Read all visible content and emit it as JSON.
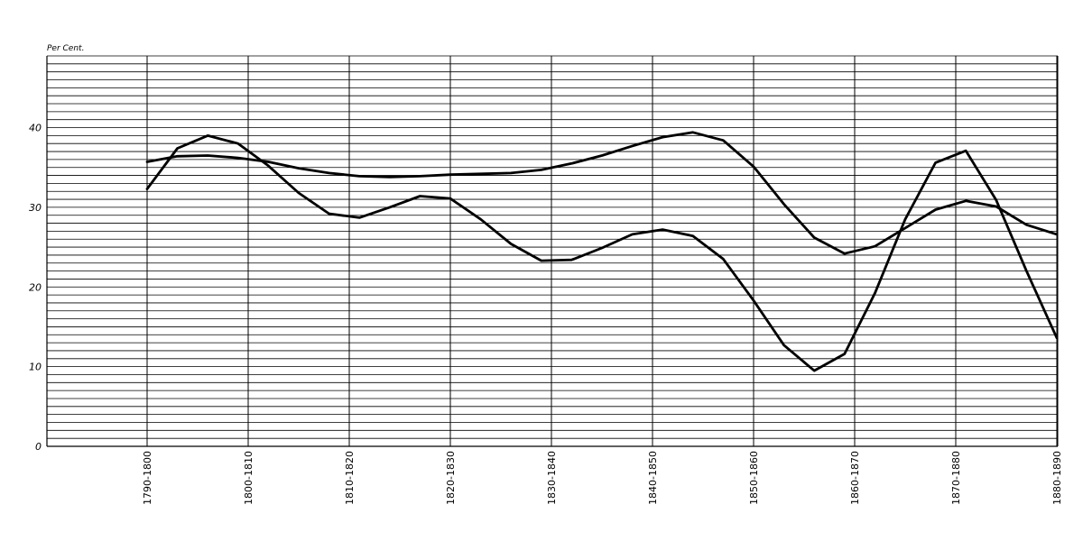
{
  "chart_data": {
    "type": "line",
    "unit_label": "Per Cent.",
    "ylim": [
      0,
      49
    ],
    "y_ticks": [
      0,
      10,
      20,
      30,
      40
    ],
    "grid": true,
    "categories": [
      "1790-1800",
      "1800-1810",
      "1810-1820",
      "1820-1830",
      "1830-1840",
      "1840-1850",
      "1850-1860",
      "1860-1870",
      "1870-1880",
      "1880-1890"
    ],
    "series": [
      {
        "x": [
          1790,
          1793,
          1796,
          1799,
          1802,
          1805,
          1808,
          1811,
          1814,
          1817,
          1820,
          1823,
          1826,
          1829,
          1832,
          1835,
          1838,
          1841,
          1844,
          1847,
          1850,
          1853,
          1856,
          1859,
          1862,
          1865,
          1868,
          1871,
          1874,
          1877,
          1880
        ],
        "values": [
          32.3,
          37.4,
          39.0,
          38.0,
          35.2,
          31.8,
          29.2,
          28.7,
          30.0,
          31.4,
          31.1,
          28.5,
          25.4,
          23.3,
          23.4,
          24.9,
          26.6,
          27.2,
          26.4,
          23.5,
          18.3,
          12.7,
          9.5,
          11.6,
          19.2,
          28.5,
          35.6,
          37.1,
          30.9,
          22.0,
          13.6
        ]
      },
      {
        "x": [
          1790,
          1793,
          1796,
          1799,
          1802,
          1805,
          1808,
          1811,
          1814,
          1817,
          1820,
          1823,
          1826,
          1829,
          1832,
          1835,
          1838,
          1841,
          1844,
          1847,
          1850,
          1853,
          1856,
          1859,
          1862,
          1865,
          1868,
          1871,
          1874,
          1877,
          1880
        ],
        "values": [
          35.7,
          36.4,
          36.5,
          36.2,
          35.7,
          34.9,
          34.3,
          33.9,
          33.8,
          33.9,
          34.1,
          34.2,
          34.3,
          34.7,
          35.5,
          36.5,
          37.7,
          38.8,
          39.4,
          38.4,
          35.1,
          30.4,
          26.2,
          24.2,
          25.1,
          27.4,
          29.7,
          30.8,
          30.1,
          27.8,
          26.6
        ]
      }
    ]
  }
}
